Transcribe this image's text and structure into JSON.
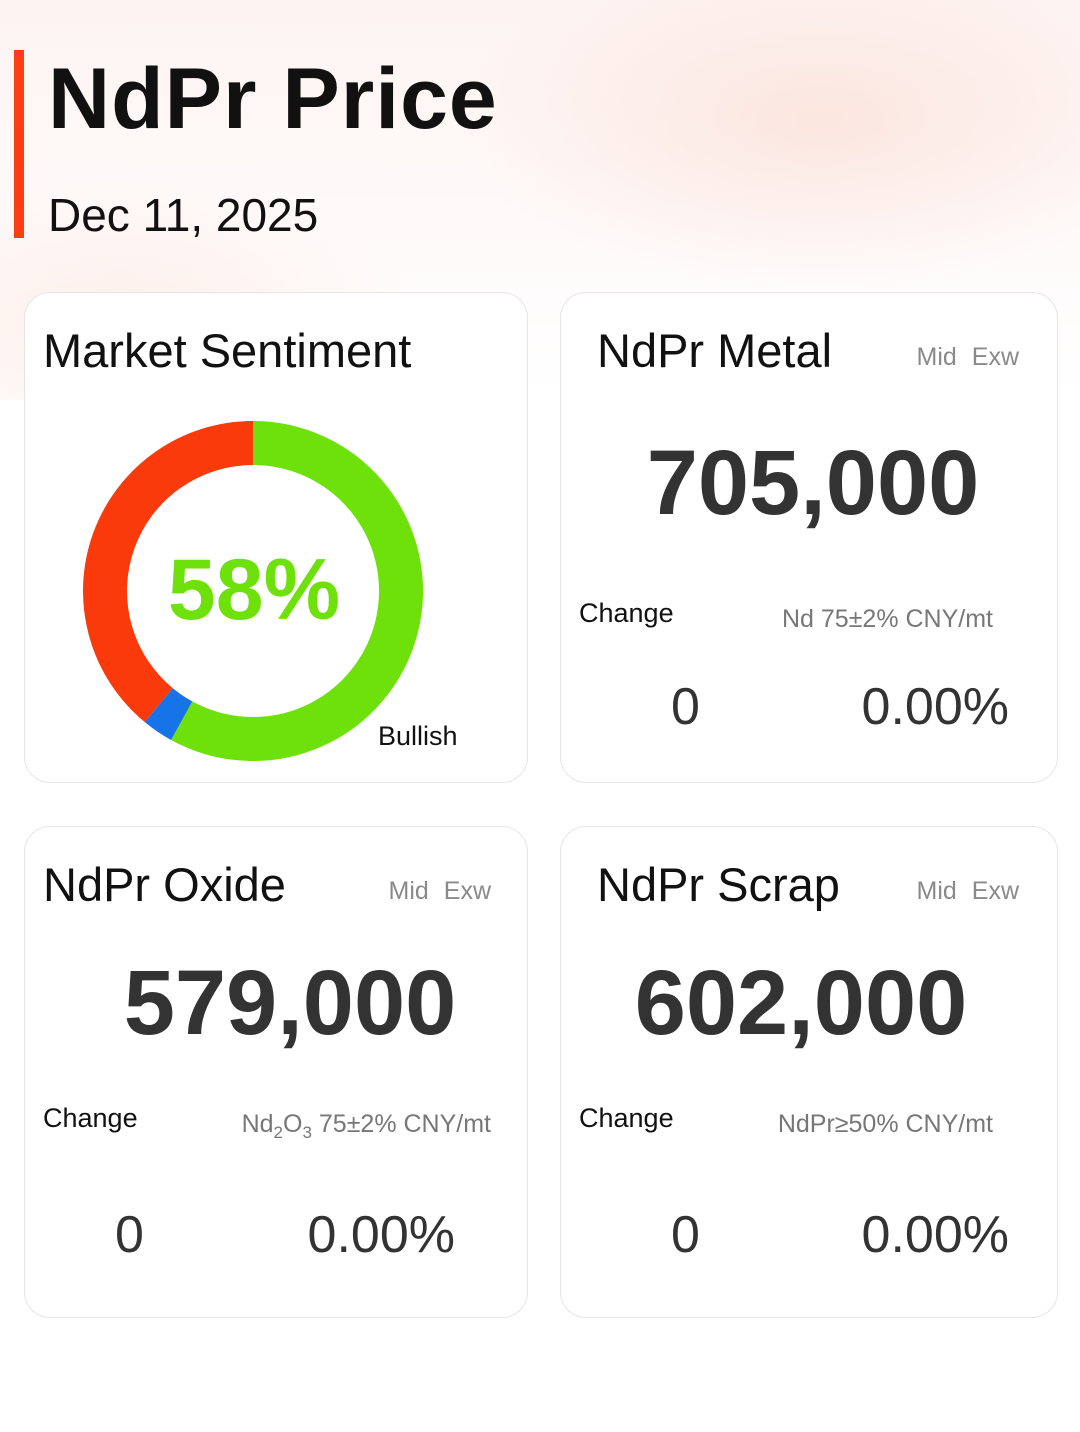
{
  "header": {
    "title": "NdPr Price",
    "date": "Dec 11, 2025"
  },
  "sentiment": {
    "title": "Market Sentiment",
    "percent_label": "58%",
    "label": "Bullish",
    "segments": [
      {
        "name": "bullish",
        "value": 58,
        "color": "#6ee10a"
      },
      {
        "name": "neutral",
        "value": 3,
        "color": "#1673e8"
      },
      {
        "name": "bearish",
        "value": 39,
        "color": "#fa3a0a"
      }
    ]
  },
  "cards": {
    "metal": {
      "title": "NdPr Metal",
      "tag_mid": "Mid",
      "tag_exw": "Exw",
      "price": "705,000",
      "change_label": "Change",
      "spec": "Nd 75±2% CNY/mt",
      "change_abs": "0",
      "change_pct": "0.00%"
    },
    "oxide": {
      "title": "NdPr Oxide",
      "tag_mid": "Mid",
      "tag_exw": "Exw",
      "price": "579,000",
      "change_label": "Change",
      "spec_formula": "Nd",
      "spec_sub1": "2",
      "spec_o": "O",
      "spec_sub2": "3",
      "spec_rest": " 75±2% CNY/mt",
      "change_abs": "0",
      "change_pct": "0.00%"
    },
    "scrap": {
      "title": "NdPr Scrap",
      "tag_mid": "Mid",
      "tag_exw": "Exw",
      "price": "602,000",
      "change_label": "Change",
      "spec": "NdPr≥50% CNY/mt",
      "change_abs": "0",
      "change_pct": "0.00%"
    }
  }
}
